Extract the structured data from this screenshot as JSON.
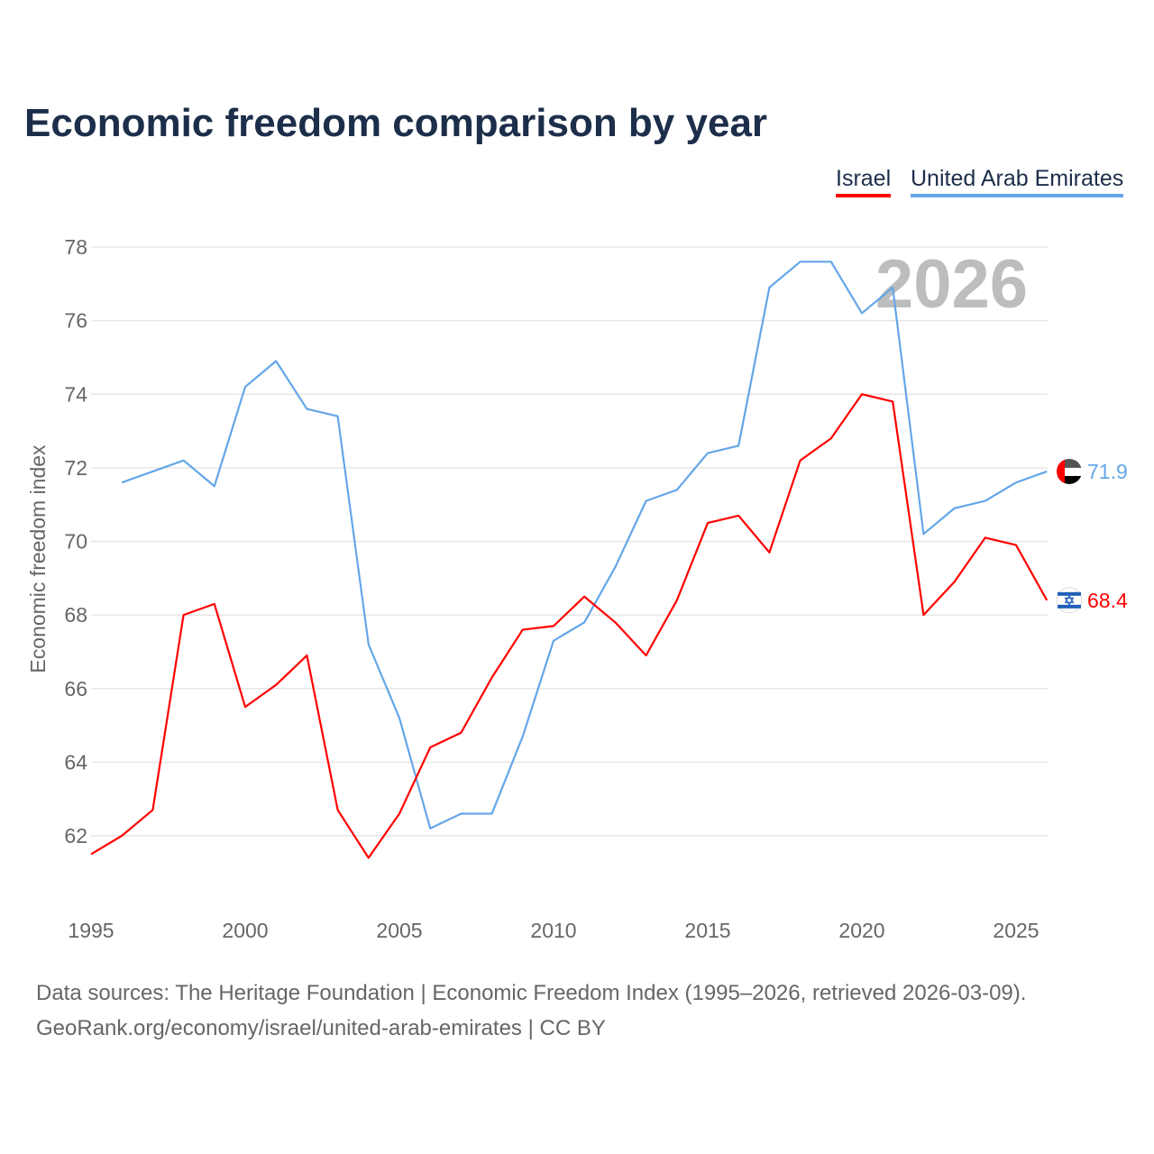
{
  "chart_data": {
    "type": "line",
    "title": "Economic freedom comparison by year",
    "xlabel": "",
    "ylabel": "Economic freedom index",
    "xlim": [
      1995,
      2026
    ],
    "ylim": [
      60.8,
      78.4
    ],
    "xticks": [
      1995,
      2000,
      2005,
      2010,
      2015,
      2020,
      2025
    ],
    "yticks": [
      62,
      64,
      66,
      68,
      70,
      72,
      74,
      76,
      78
    ],
    "grid": true,
    "legend_position": "top-right",
    "watermark_year": "2026",
    "series": [
      {
        "name": "Israel",
        "color": "#ff0000",
        "end_label": "68.4",
        "flag": "israel-flag",
        "x": [
          1995,
          1996,
          1997,
          1998,
          1999,
          2000,
          2001,
          2002,
          2003,
          2004,
          2005,
          2006,
          2007,
          2008,
          2009,
          2010,
          2011,
          2012,
          2013,
          2014,
          2015,
          2016,
          2017,
          2018,
          2019,
          2020,
          2021,
          2022,
          2023,
          2024,
          2025,
          2026
        ],
        "values": [
          61.5,
          62.0,
          62.7,
          68.0,
          68.3,
          65.5,
          66.1,
          66.9,
          62.7,
          61.4,
          62.6,
          64.4,
          64.8,
          66.3,
          67.6,
          67.7,
          68.5,
          67.8,
          66.9,
          68.4,
          70.5,
          70.7,
          69.7,
          72.2,
          72.8,
          74.0,
          73.8,
          68.0,
          68.9,
          70.1,
          69.9,
          68.4
        ]
      },
      {
        "name": "United Arab Emirates",
        "color": "#64a6e8",
        "end_label": "71.9",
        "flag": "uae-flag",
        "x": [
          1996,
          1997,
          1998,
          1999,
          2000,
          2001,
          2002,
          2003,
          2004,
          2005,
          2006,
          2007,
          2008,
          2009,
          2010,
          2011,
          2012,
          2013,
          2014,
          2015,
          2016,
          2017,
          2018,
          2019,
          2020,
          2021,
          2022,
          2023,
          2024,
          2025,
          2026
        ],
        "values": [
          71.6,
          71.9,
          72.2,
          71.5,
          74.2,
          74.9,
          73.6,
          73.4,
          67.2,
          65.2,
          62.2,
          62.6,
          62.6,
          64.7,
          67.3,
          67.8,
          69.3,
          71.1,
          71.4,
          72.4,
          72.6,
          76.9,
          77.6,
          77.6,
          76.2,
          76.9,
          70.2,
          70.9,
          71.1,
          71.6,
          71.9
        ]
      }
    ]
  },
  "footer": {
    "line1": "Data sources: The Heritage Foundation | Economic Freedom Index (1995–2026, retrieved 2026-03-09).",
    "line2": "GeoRank.org/economy/israel/united-arab-emirates | CC BY"
  }
}
